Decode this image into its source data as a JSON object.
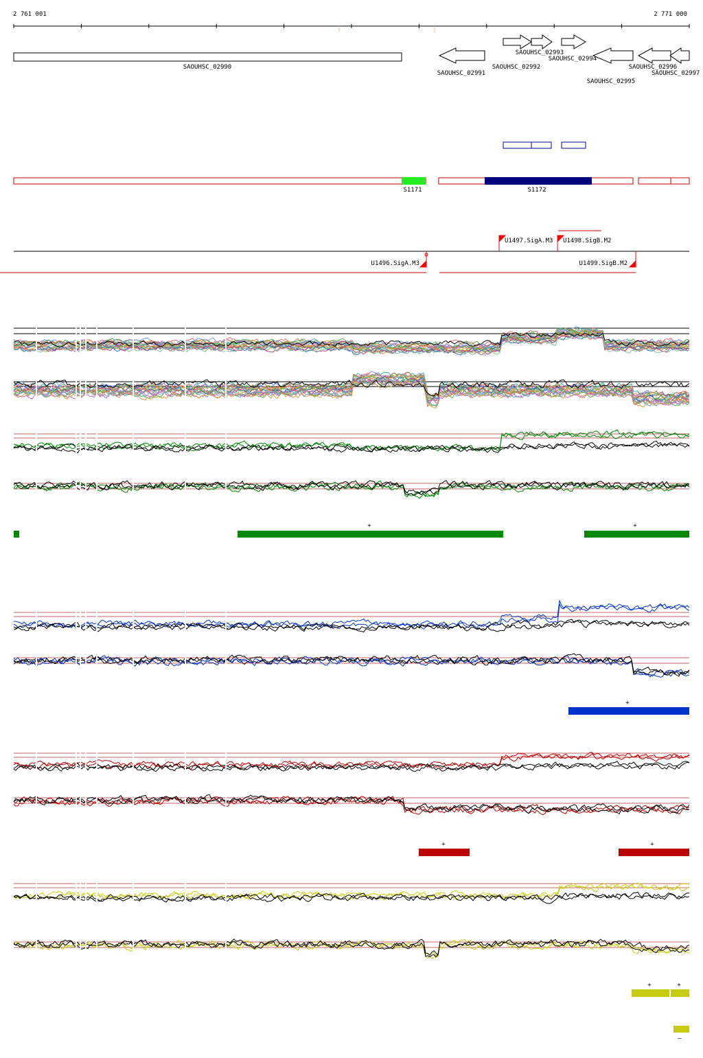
{
  "coords": {
    "start_label": "2 761 001",
    "end_label": "2 771 000",
    "start": 2761001,
    "end": 2771000
  },
  "genes": [
    {
      "id": "SAOUHSC_02990",
      "strand": "+"
    },
    {
      "id": "SAOUHSC_02991",
      "strand": "-"
    },
    {
      "id": "SAOUHSC_02992",
      "strand": "+"
    },
    {
      "id": "SAOUHSC_02993",
      "strand": "+"
    },
    {
      "id": "SAOUHSC_02994",
      "strand": "+"
    },
    {
      "id": "SAOUHSC_02995",
      "strand": "-"
    },
    {
      "id": "SAOUHSC_02996",
      "strand": "-"
    },
    {
      "id": "SAOUHSC_02997",
      "strand": "-"
    }
  ],
  "srnas": [
    {
      "label": "S1171",
      "color": "#22ee22"
    },
    {
      "label": "S1172",
      "color": "#00007f"
    }
  ],
  "promoters": [
    {
      "label": "U1497.SigA.M3",
      "strand": "+"
    },
    {
      "label": "U1498.SigB.M2",
      "strand": "+"
    },
    {
      "label": "U1496.SigA.M3",
      "strand": "-"
    },
    {
      "label": "U1499.SigB.M2",
      "strand": "-"
    }
  ],
  "conditions": [
    {
      "color": "#008800",
      "marks": [
        "+",
        "+"
      ]
    },
    {
      "color": "#0033cc",
      "marks": [
        "+"
      ]
    },
    {
      "color": "#bb0000",
      "marks": [
        "+",
        "+"
      ]
    },
    {
      "color": "#c8cc10",
      "marks": [
        "+",
        "+",
        "–"
      ]
    }
  ],
  "colors": {
    "gene_outline": "#000000",
    "segment_outline": "#cc0000",
    "promoter": "#ff0000",
    "blue_feature": "#0000aa",
    "ref_line": "#b03030"
  }
}
